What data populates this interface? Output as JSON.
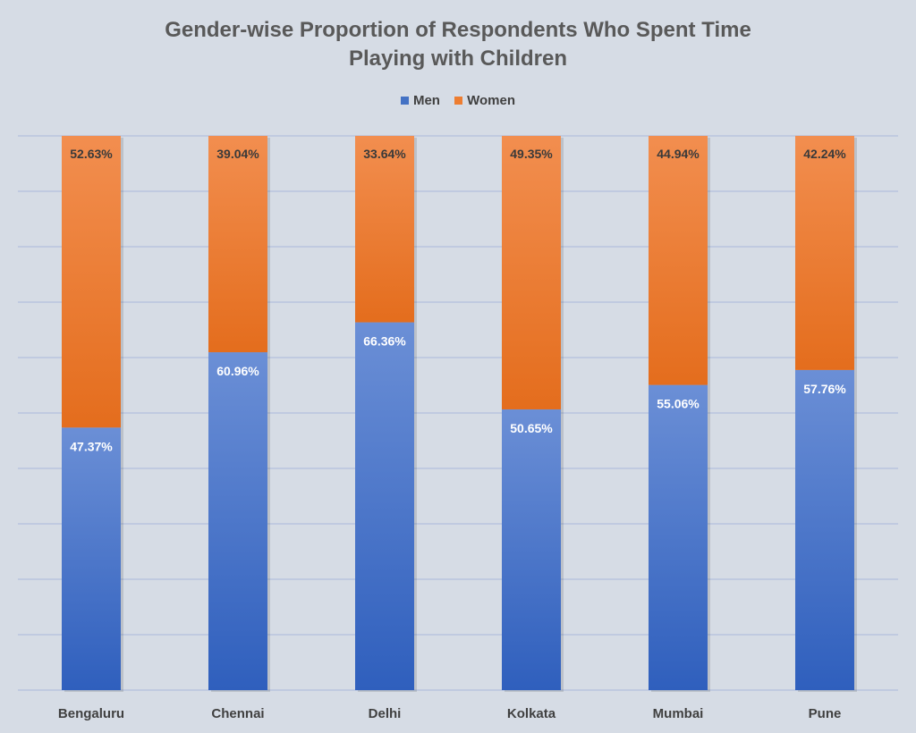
{
  "chart_data": {
    "type": "bar",
    "stacked": true,
    "title_line1": "Gender-wise Proportion of Respondents Who Spent Time",
    "title_line2": "Playing with Children",
    "categories": [
      "Bengaluru",
      "Chennai",
      "Delhi",
      "Kolkata",
      "Mumbai",
      "Pune"
    ],
    "series": [
      {
        "name": "Men",
        "values": [
          47.37,
          60.96,
          66.36,
          50.65,
          55.06,
          57.76
        ],
        "color": "#4472c4"
      },
      {
        "name": "Women",
        "values": [
          52.63,
          39.04,
          33.64,
          49.35,
          44.94,
          42.24
        ],
        "color": "#ed7d31"
      }
    ],
    "value_labels_men": [
      "47.37%",
      "60.96%",
      "66.36%",
      "50.65%",
      "55.06%",
      "57.76%"
    ],
    "value_labels_women": [
      "52.63%",
      "39.04%",
      "33.64%",
      "49.35%",
      "44.94%",
      "42.24%"
    ],
    "ylim": [
      0,
      100
    ],
    "grid": true,
    "legend_position": "top"
  }
}
